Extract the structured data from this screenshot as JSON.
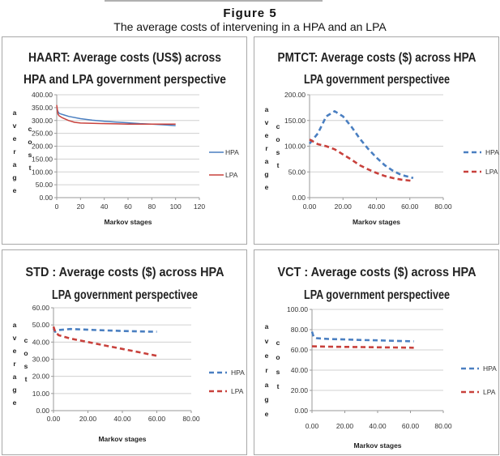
{
  "figure": {
    "title": "Figure 5",
    "subtitle": "The average costs of intervening in a HPA and an LPA"
  },
  "colors": {
    "HPA": "#4a7fc1",
    "LPA": "#c8413c",
    "grid": "#d0d0d0",
    "axis": "#999999"
  },
  "chart_data": [
    {
      "type": "line",
      "title": "HAART: Average costs (US$) across HPA and LPA government perspective",
      "title_lines": [
        "HAART: Average costs (US$) across",
        "HPA and LPA government perspective"
      ],
      "xlabel": "Markov stages",
      "ylabel_letters": [
        "a",
        "v",
        "e",
        "r",
        "a",
        "g",
        "e"
      ],
      "ylabel2_letters": [
        "c",
        "o",
        "s",
        "t"
      ],
      "xlim": [
        0,
        120
      ],
      "ylim": [
        0,
        400
      ],
      "xticks": [
        "0",
        "20",
        "40",
        "60",
        "80",
        "100",
        "120"
      ],
      "yticks": [
        "0.00",
        "50.00",
        "100.00",
        "150.00",
        "200.00",
        "250.00",
        "300.00",
        "350.00",
        "400.00"
      ],
      "grid": true,
      "legend": "right",
      "line_style": "solid",
      "series": [
        {
          "name": "HPA",
          "x": [
            0,
            1,
            2,
            5,
            10,
            20,
            30,
            40,
            50,
            60,
            70,
            80,
            90,
            100
          ],
          "y": [
            345,
            335,
            328,
            323,
            316,
            307,
            301,
            297,
            294,
            291,
            288,
            286,
            283,
            280
          ]
        },
        {
          "name": "LPA",
          "x": [
            0,
            1,
            2,
            5,
            10,
            15,
            20,
            30,
            40,
            50,
            60,
            70,
            80,
            90,
            100
          ],
          "y": [
            360,
            325,
            318,
            310,
            300,
            293,
            290,
            289,
            288,
            287,
            286,
            286,
            286,
            286,
            286
          ]
        }
      ]
    },
    {
      "type": "line",
      "title": "PMTCT: Average costs ($) across HPA LPA government perspectivee",
      "title_lines": [
        "PMTCT: Average costs ($) across HPA",
        "LPA government perspectivee"
      ],
      "xlabel": "Markov stages",
      "ylabel_letters": [
        "a",
        "v",
        "e",
        "r",
        "a",
        "g",
        "e"
      ],
      "ylabel2_letters": [
        "c",
        "o",
        "s",
        "t"
      ],
      "xlim": [
        0,
        80
      ],
      "ylim": [
        0,
        200
      ],
      "xticks": [
        "0.00",
        "20.00",
        "40.00",
        "60.00",
        "80.00"
      ],
      "yticks": [
        "0.00",
        "50.00",
        "100.00",
        "150.00",
        "200.00"
      ],
      "grid": true,
      "legend": "right",
      "line_style": "dashed",
      "series": [
        {
          "name": "HPA",
          "x": [
            0,
            5,
            10,
            15,
            20,
            25,
            30,
            35,
            40,
            45,
            50,
            55,
            60,
            62
          ],
          "y": [
            105,
            125,
            158,
            168,
            158,
            138,
            115,
            95,
            78,
            63,
            52,
            44,
            40,
            38
          ]
        },
        {
          "name": "LPA",
          "x": [
            0,
            5,
            10,
            15,
            20,
            25,
            30,
            35,
            40,
            45,
            50,
            55,
            60,
            62
          ],
          "y": [
            113,
            104,
            100,
            94,
            84,
            74,
            63,
            55,
            48,
            42,
            38,
            35,
            33,
            32
          ]
        }
      ]
    },
    {
      "type": "line",
      "title": "STD : Average costs ($) across HPA LPA government perspectivee",
      "title_lines": [
        "STD : Average costs ($) across HPA",
        "LPA government perspectivee"
      ],
      "xlabel": "Markov stages",
      "ylabel_letters": [
        "a",
        "v",
        "e",
        "r",
        "a",
        "g",
        "e"
      ],
      "ylabel2_letters": [
        "c",
        "o",
        "s",
        "t"
      ],
      "xlim": [
        0,
        80
      ],
      "ylim": [
        0,
        60
      ],
      "xticks": [
        "0.00",
        "20.00",
        "40.00",
        "60.00",
        "80.00"
      ],
      "yticks": [
        "0.00",
        "10.00",
        "20.00",
        "30.00",
        "40.00",
        "50.00",
        "60.00"
      ],
      "grid": true,
      "legend": "right",
      "line_style": "dashed",
      "series": [
        {
          "name": "HPA",
          "x": [
            0,
            1,
            3,
            10,
            20,
            30,
            40,
            50,
            60
          ],
          "y": [
            48,
            46,
            47,
            47.6,
            47.2,
            46.8,
            46.5,
            46.2,
            46
          ]
        },
        {
          "name": "LPA",
          "x": [
            0,
            1,
            3,
            10,
            20,
            30,
            40,
            50,
            60
          ],
          "y": [
            49,
            46,
            44,
            42,
            40,
            38,
            36,
            34,
            32
          ]
        }
      ]
    },
    {
      "type": "line",
      "title": "VCT : Average costs ($) across HPA LPA government perspectivee",
      "title_lines": [
        "VCT : Average costs ($) across HPA",
        "LPA government perspectivee"
      ],
      "xlabel": "Markov stages",
      "ylabel_letters": [
        "a",
        "v",
        "e",
        "r",
        "a",
        "g",
        "e"
      ],
      "ylabel2_letters": [
        "c",
        "o",
        "s",
        "t"
      ],
      "xlim": [
        0,
        80
      ],
      "ylim": [
        0,
        100
      ],
      "xticks": [
        "0.00",
        "20.00",
        "40.00",
        "60.00",
        "80.00"
      ],
      "yticks": [
        "0.00",
        "20.00",
        "40.00",
        "60.00",
        "80.00",
        "100.00"
      ],
      "grid": true,
      "legend": "right",
      "line_style": "dashed",
      "series": [
        {
          "name": "HPA",
          "x": [
            0,
            1,
            3,
            10,
            20,
            30,
            40,
            50,
            62
          ],
          "y": [
            78,
            73,
            71.5,
            70.8,
            70.3,
            69.8,
            69.4,
            69,
            68.5
          ]
        },
        {
          "name": "LPA",
          "x": [
            0,
            10,
            20,
            30,
            40,
            50,
            62
          ],
          "y": [
            63.5,
            63.2,
            63,
            62.8,
            62.6,
            62.4,
            62.2
          ]
        }
      ]
    }
  ]
}
